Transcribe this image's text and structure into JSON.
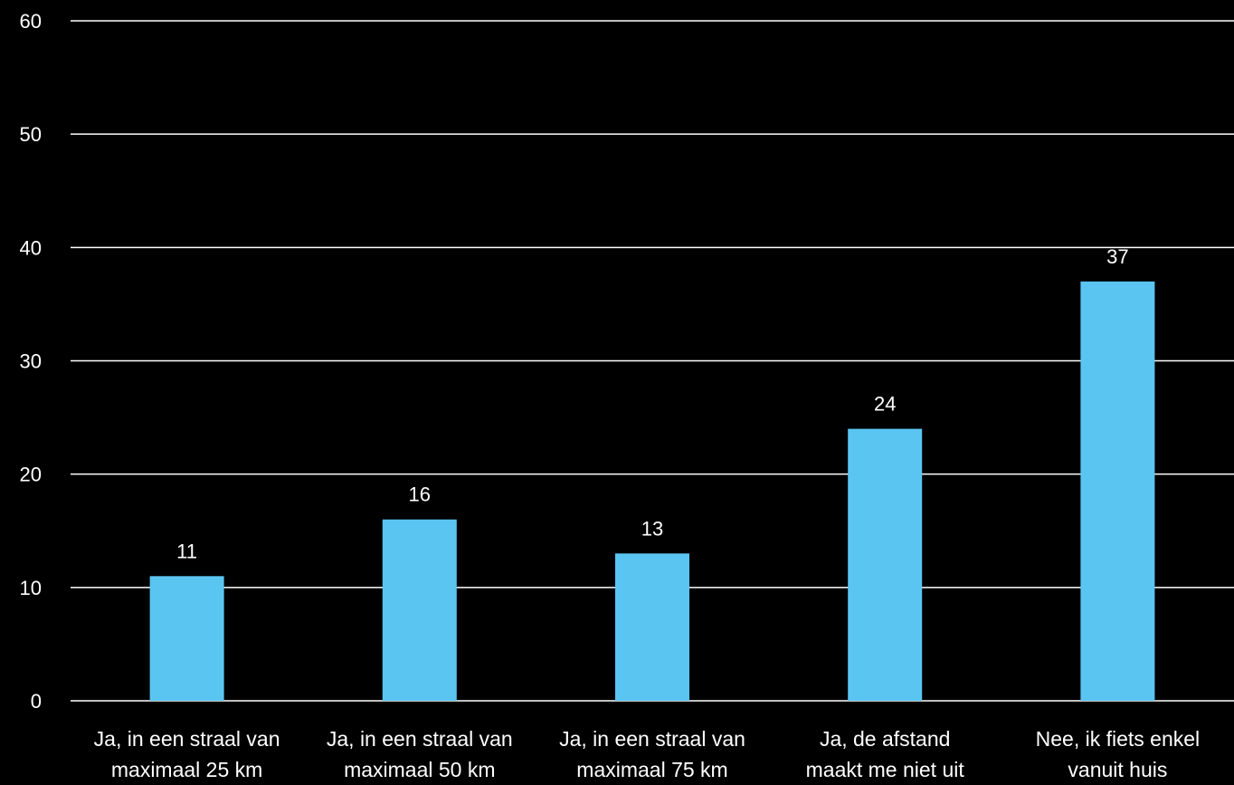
{
  "chart_data": {
    "type": "bar",
    "categories": [
      [
        "Ja, in een straal van",
        "maximaal 25 km"
      ],
      [
        "Ja, in een straal van",
        "maximaal 50 km"
      ],
      [
        "Ja, in een straal van",
        "maximaal 75 km"
      ],
      [
        "Ja, de afstand",
        "maakt me niet uit"
      ],
      [
        "Nee, ik fiets enkel",
        "vanuit huis"
      ]
    ],
    "values": [
      11,
      16,
      13,
      24,
      37
    ],
    "data_labels": [
      "11",
      "16",
      "13",
      "24",
      "37"
    ],
    "yticks": [
      0,
      10,
      20,
      30,
      40,
      50,
      60
    ],
    "ylim": [
      0,
      60
    ],
    "title": "",
    "xlabel": "",
    "ylabel": "",
    "grid": true,
    "bar_color": "#5bc5f2",
    "background_color": "#000000",
    "text_color": "#ffffff",
    "gridline_color": "#ffffff"
  }
}
